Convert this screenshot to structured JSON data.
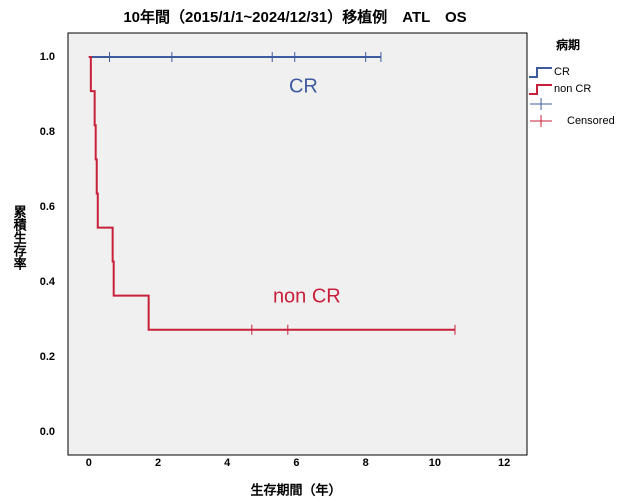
{
  "chart_data": {
    "type": "step",
    "title": "10年間（2015/1/1~2024/12/31）移植例　ATL　OS",
    "x_label": "生存期間（年）",
    "y_label": "累積生存率",
    "legend_title": "病期",
    "censored_label": "Censored",
    "xlim": [
      -0.6,
      12.66
    ],
    "ylim": [
      -0.061,
      1.064
    ],
    "xticks": [
      0,
      2,
      4,
      6,
      8,
      10,
      12
    ],
    "yticks": [
      {
        "value": 0,
        "label": "0.0"
      },
      {
        "value": 0.2,
        "label": "0.2"
      },
      {
        "value": 0.4,
        "label": "0.4"
      },
      {
        "value": 0.6,
        "label": "0.6"
      },
      {
        "value": 0.8,
        "label": "0.8"
      },
      {
        "value": 1,
        "label": "1.0"
      }
    ],
    "grid": false,
    "series": [
      {
        "name": "CR",
        "color": "#3f5ba0",
        "x": [
          0,
          8.44
        ],
        "values": [
          1,
          1
        ],
        "censored": {
          "x": [
            0.6,
            2.4,
            5.3,
            5.95,
            8.0,
            8.44
          ],
          "values": [
            1,
            1,
            1,
            1,
            1,
            1
          ]
        },
        "annotation": {
          "text": "CR",
          "x": 6.2,
          "y": 0.92
        }
      },
      {
        "name": "non CR",
        "color": "#c8203a",
        "x": [
          0,
          0.06,
          0.17,
          0.2,
          0.23,
          0.26,
          0.69,
          0.72,
          1.73,
          10.58
        ],
        "values": [
          1,
          0.909,
          0.818,
          0.727,
          0.636,
          0.545,
          0.455,
          0.364,
          0.273,
          0.273
        ],
        "censored": {
          "x": [
            4.71,
            5.75,
            10.58
          ],
          "values": [
            0.273,
            0.273,
            0.273
          ]
        },
        "annotation": {
          "text": "non CR",
          "x": 6.3,
          "y": 0.36
        }
      }
    ]
  }
}
